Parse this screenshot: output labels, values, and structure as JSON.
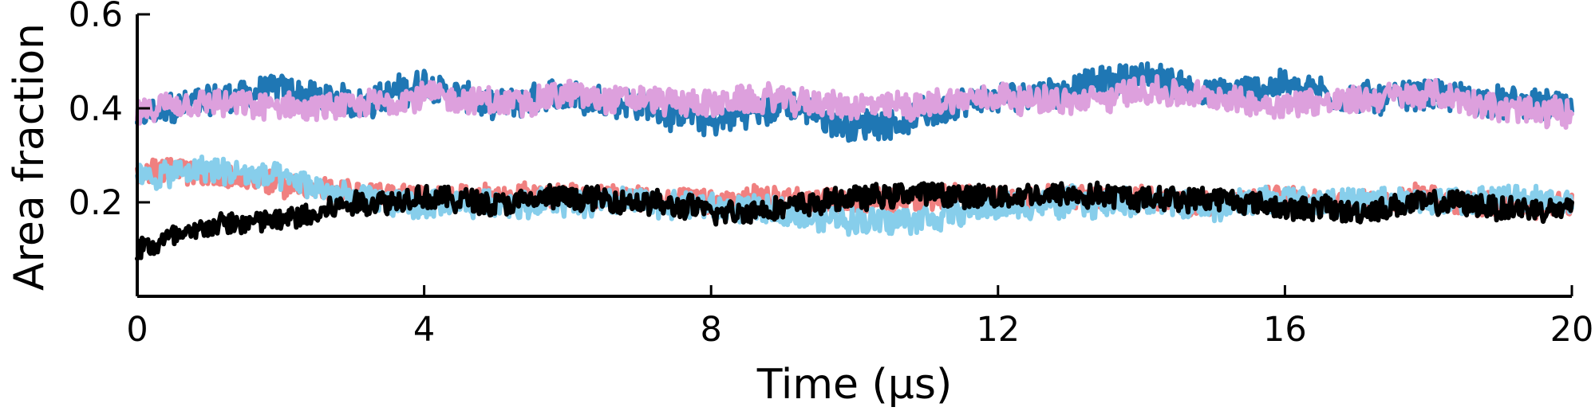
{
  "chart_data": {
    "type": "line",
    "title": "",
    "xlabel": "Time (μs)",
    "ylabel": "Area fraction",
    "xlim": [
      0,
      20
    ],
    "ylim": [
      0,
      0.6
    ],
    "xticks": [
      0,
      4,
      8,
      12,
      16,
      20
    ],
    "xtick_labels": [
      "0",
      "4",
      "8",
      "12",
      "16",
      "20"
    ],
    "yticks": [
      0.2,
      0.4,
      0.6
    ],
    "ytick_labels": [
      "0.2",
      "0.4",
      "0.6"
    ],
    "grid": false,
    "legend": "none",
    "series": [
      {
        "color": "#1f77b4",
        "x": [
          0,
          1,
          2,
          3,
          4,
          5,
          6,
          7,
          8,
          9,
          10,
          11,
          12,
          13,
          14,
          15,
          16,
          17,
          18,
          19,
          20
        ],
        "values": [
          0.38,
          0.42,
          0.44,
          0.41,
          0.45,
          0.4,
          0.43,
          0.41,
          0.37,
          0.41,
          0.36,
          0.39,
          0.42,
          0.44,
          0.47,
          0.43,
          0.45,
          0.42,
          0.43,
          0.41,
          0.4
        ]
      },
      {
        "color": "#dda0dd",
        "x": [
          0,
          1,
          2,
          3,
          4,
          5,
          6,
          7,
          8,
          9,
          10,
          11,
          12,
          13,
          14,
          15,
          16,
          17,
          18,
          19,
          20
        ],
        "values": [
          0.39,
          0.41,
          0.4,
          0.4,
          0.43,
          0.41,
          0.43,
          0.42,
          0.41,
          0.42,
          0.4,
          0.41,
          0.43,
          0.41,
          0.44,
          0.42,
          0.41,
          0.42,
          0.43,
          0.4,
          0.39
        ]
      },
      {
        "color": "#f08080",
        "x": [
          0,
          1,
          2,
          3,
          4,
          5,
          6,
          7,
          8,
          9,
          10,
          11,
          12,
          13,
          14,
          15,
          16,
          17,
          18,
          19,
          20
        ],
        "values": [
          0.27,
          0.26,
          0.24,
          0.22,
          0.21,
          0.21,
          0.22,
          0.21,
          0.2,
          0.21,
          0.2,
          0.21,
          0.21,
          0.21,
          0.21,
          0.2,
          0.21,
          0.2,
          0.21,
          0.19,
          0.2
        ]
      },
      {
        "color": "#87ceeb",
        "x": [
          0,
          1,
          2,
          3,
          4,
          5,
          6,
          7,
          8,
          9,
          10,
          11,
          12,
          13,
          14,
          15,
          16,
          17,
          18,
          19,
          20
        ],
        "values": [
          0.25,
          0.27,
          0.25,
          0.21,
          0.19,
          0.2,
          0.2,
          0.2,
          0.19,
          0.18,
          0.16,
          0.17,
          0.19,
          0.2,
          0.2,
          0.19,
          0.21,
          0.2,
          0.2,
          0.21,
          0.2
        ]
      },
      {
        "color": "#000000",
        "x": [
          0,
          1,
          2,
          3,
          4,
          5,
          6,
          7,
          8,
          9,
          10,
          11,
          12,
          13,
          14,
          15,
          16,
          17,
          18,
          19,
          20
        ],
        "values": [
          0.1,
          0.15,
          0.16,
          0.2,
          0.21,
          0.2,
          0.21,
          0.2,
          0.18,
          0.19,
          0.21,
          0.22,
          0.21,
          0.22,
          0.21,
          0.21,
          0.19,
          0.18,
          0.2,
          0.19,
          0.18
        ]
      }
    ]
  }
}
